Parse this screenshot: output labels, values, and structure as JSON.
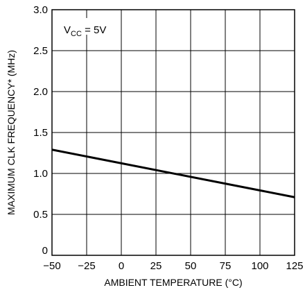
{
  "chart_data": {
    "type": "line",
    "xlabel": "AMBIENT TEMPERATURE (°C)",
    "ylabel": "MAXIMUM CLK FREQUENCY* (MHz)",
    "xlim": [
      -50,
      125
    ],
    "ylim": [
      0,
      3.0
    ],
    "x_ticks": [
      "−50",
      "−25",
      "0",
      "25",
      "50",
      "75",
      "100",
      "125"
    ],
    "x_tick_values": [
      -50,
      -25,
      0,
      25,
      50,
      75,
      100,
      125
    ],
    "y_ticks": [
      "0",
      "0.5",
      "1.0",
      "1.5",
      "2.0",
      "2.5",
      "3.0"
    ],
    "y_tick_values": [
      0,
      0.5,
      1.0,
      1.5,
      2.0,
      2.5,
      3.0
    ],
    "grid": true,
    "annotation": {
      "main": "V",
      "sub": "CC",
      "rest": " = 5V"
    },
    "series": [
      {
        "x": [
          -50,
          125
        ],
        "y": [
          1.29,
          0.71
        ]
      }
    ]
  }
}
